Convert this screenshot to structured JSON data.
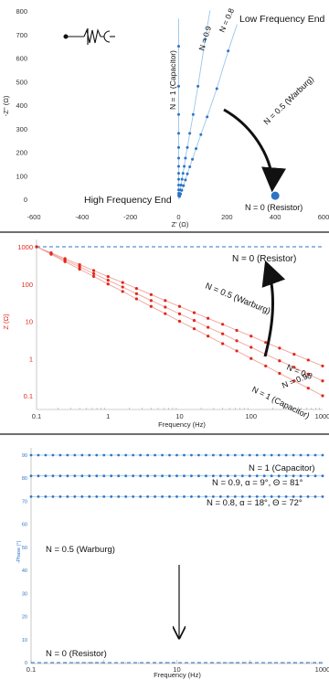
{
  "chart_data": [
    {
      "type": "scatter",
      "subtype": "nyquist",
      "xlabel": "Z' (Ω)",
      "ylabel": "-Z'' (Ω)",
      "xlim": [
        -600,
        600
      ],
      "ylim": [
        -20,
        800
      ],
      "xticks": [
        -600,
        -400,
        -200,
        0,
        200,
        400,
        600
      ],
      "yticks": [
        0,
        100,
        200,
        300,
        400,
        500,
        600,
        700,
        800
      ],
      "grid": false,
      "series": [
        {
          "name": "N = 1 (Capacitor)",
          "color": "#2f73c4",
          "x": [
            0,
            0,
            0,
            0,
            0,
            0,
            0,
            0,
            0,
            0,
            0,
            0,
            0
          ],
          "y": [
            15,
            25,
            40,
            60,
            85,
            110,
            140,
            175,
            220,
            280,
            360,
            480,
            650
          ]
        },
        {
          "name": "N = 0.9",
          "color": "#2f73c4",
          "x": [
            2,
            4,
            6,
            10,
            14,
            18,
            23,
            28,
            36,
            46,
            60,
            80,
            110
          ],
          "y": [
            15,
            25,
            40,
            60,
            85,
            110,
            140,
            175,
            220,
            280,
            360,
            480,
            680
          ]
        },
        {
          "name": "N = 0.8",
          "color": "#2f73c4",
          "x": [
            4,
            8,
            13,
            20,
            28,
            36,
            46,
            57,
            72,
            92,
            118,
            158,
            205
          ],
          "y": [
            12,
            22,
            38,
            58,
            82,
            108,
            138,
            170,
            215,
            275,
            350,
            470,
            630
          ]
        },
        {
          "name": "N = 0 (Resistor)",
          "color": "#2f73c4",
          "x": [
            400
          ],
          "y": [
            15
          ]
        }
      ],
      "annotations": [
        {
          "text": "Low Frequency End",
          "x": 430,
          "y": 755
        },
        {
          "text": "High Frequency End",
          "x": -290,
          "y": 0
        },
        {
          "text": "N = 0.5 (Warburg)",
          "x": 480,
          "y": 330
        },
        {
          "text": "N = 0 (Resistor)",
          "x": 400,
          "y": -50
        }
      ],
      "circuit_symbol": "constant-phase-element-icon"
    },
    {
      "type": "scatter",
      "subtype": "bode-magnitude",
      "xlabel": "Frequency (Hz)",
      "ylabel": "Z (Ω)",
      "xscale": "log",
      "yscale": "log",
      "xlim": [
        0.1,
        1000
      ],
      "ylim": [
        0.05,
        1500
      ],
      "xtick_labels": [
        "0.1",
        "1",
        "10",
        "100",
        "1000"
      ],
      "ytick_labels": [
        "0.1",
        "1",
        "10",
        "100",
        "1000"
      ],
      "series": [
        {
          "name": "N = 1 (Capacitor)",
          "color": "#e0281c",
          "x": [
            0.1,
            0.16,
            0.25,
            0.4,
            0.63,
            1,
            1.6,
            2.5,
            4,
            6.3,
            10,
            16,
            25,
            40,
            63,
            100,
            160,
            250,
            400,
            630,
            1000
          ],
          "y": [
            1000,
            630,
            400,
            250,
            160,
            100,
            63,
            40,
            25,
            16,
            10,
            6.3,
            4,
            2.5,
            1.6,
            1,
            0.63,
            0.4,
            0.25,
            0.16,
            0.1
          ]
        },
        {
          "name": "N = 0.9",
          "color": "#e0281c",
          "x": [
            0.1,
            0.16,
            0.25,
            0.4,
            0.63,
            1,
            1.6,
            2.5,
            4,
            6.3,
            10,
            16,
            25,
            40,
            63,
            100,
            160,
            250,
            400,
            630,
            1000
          ],
          "y": [
            1000,
            660,
            440,
            290,
            190,
            126,
            83,
            55,
            36,
            24,
            15.8,
            10.5,
            6.9,
            4.6,
            3,
            2,
            1.3,
            0.87,
            0.58,
            0.38,
            0.25
          ]
        },
        {
          "name": "N = 0.8",
          "color": "#e0281c",
          "x": [
            0.1,
            0.16,
            0.25,
            0.4,
            0.63,
            1,
            1.6,
            2.5,
            4,
            6.3,
            10,
            16,
            25,
            40,
            63,
            100,
            160,
            250,
            400,
            630,
            1000
          ],
          "y": [
            1000,
            690,
            480,
            330,
            230,
            158,
            110,
            76,
            52,
            36,
            25,
            17,
            12,
            8.3,
            5.7,
            4,
            2.7,
            1.9,
            1.3,
            0.91,
            0.63
          ]
        },
        {
          "name": "N = 0 (Resistor)",
          "color": "#2f73c4",
          "style": "dashed",
          "x": [
            0.1,
            1000
          ],
          "y": [
            1000,
            1000
          ]
        }
      ],
      "annotations": [
        {
          "text": "N = 0 (Resistor)"
        },
        {
          "text": "N = 0.5 (Warburg)"
        },
        {
          "text": "N = 0.8"
        },
        {
          "text": "N = 0.9"
        },
        {
          "text": "N = 1 (Capacitor)"
        }
      ]
    },
    {
      "type": "scatter",
      "subtype": "bode-phase",
      "xlabel": "Frequency (Hz)",
      "ylabel": "-Phase (°)",
      "xscale": "log",
      "xlim": [
        0.1,
        1000
      ],
      "ylim": [
        0,
        90
      ],
      "xtick_labels": [
        "0.1",
        "10",
        "1000"
      ],
      "yticks": [
        0,
        10,
        20,
        30,
        40,
        50,
        60,
        70,
        80,
        90
      ],
      "series": [
        {
          "name": "N = 1 (Capacitor)",
          "color": "#2f73c4",
          "constant": 90
        },
        {
          "name": "N = 0.9, α = 9°, Θ = 81°",
          "color": "#2f73c4",
          "constant": 81
        },
        {
          "name": "N = 0.8, α = 18°, Θ = 72°",
          "color": "#2f73c4",
          "constant": 72
        },
        {
          "name": "N = 0 (Resistor)",
          "color": "#2f73c4",
          "style": "dashed",
          "constant": 0
        }
      ],
      "annotations": [
        {
          "text": "N = 1 (Capacitor)"
        },
        {
          "text": "N = 0.9, α = 9°, Θ = 81°"
        },
        {
          "text": "N = 0.8, α = 18°, Θ = 72°"
        },
        {
          "text": "N = 0.5 (Warburg)"
        },
        {
          "text": "N = 0 (Resistor)"
        }
      ]
    }
  ]
}
